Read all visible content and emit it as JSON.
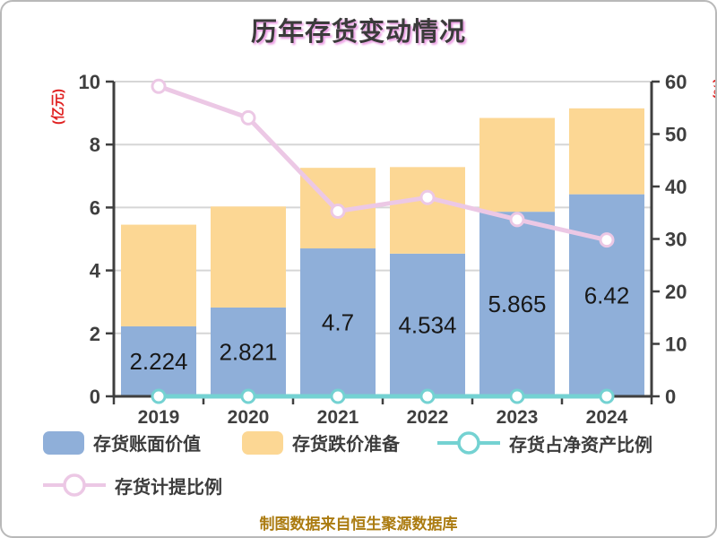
{
  "title": {
    "text": "历年存货变动情况"
  },
  "footer": {
    "text": "制图数据来自恒生聚源数据库"
  },
  "chart_data": {
    "type": "bar",
    "subtype": "stacked bars with two line overlays (dual axis)",
    "title": "历年存货变动情况",
    "categories": [
      "2019",
      "2020",
      "2021",
      "2022",
      "2023",
      "2024"
    ],
    "series": [
      {
        "name": "存货账面价值",
        "type": "bar",
        "stack": "inventory",
        "axis": "left",
        "color": "#8fafd9",
        "values": [
          2.224,
          2.821,
          4.7,
          4.534,
          5.865,
          6.42
        ],
        "data_labels": [
          "2.224",
          "2.821",
          "4.7",
          "4.534",
          "5.865",
          "6.42"
        ]
      },
      {
        "name": "存货跌价准备",
        "type": "bar",
        "stack": "inventory",
        "axis": "left",
        "color": "#fcd794",
        "values": [
          3.23,
          3.21,
          2.56,
          2.75,
          2.98,
          2.73
        ]
      },
      {
        "name": "存货占净资产比例",
        "type": "line",
        "axis": "right",
        "color": "#74d2d2",
        "marker": "white-filled-circle",
        "values": [
          0,
          0,
          0,
          0,
          0,
          0
        ]
      },
      {
        "name": "存货计提比例",
        "type": "line",
        "axis": "right",
        "color": "#ecc8e5",
        "marker": "white-filled-circle",
        "values": [
          59.1,
          53.1,
          35.3,
          37.9,
          33.7,
          29.8
        ]
      }
    ],
    "left_axis": {
      "label": "(亿元)",
      "min": 0,
      "max": 10,
      "tick_step": 2,
      "ticks": [
        0,
        2,
        4,
        6,
        8,
        10
      ],
      "label_color": "#e02222",
      "tick_color": "#3f3f3f"
    },
    "right_axis": {
      "label": "(%)",
      "min": 0,
      "max": 60,
      "tick_step": 10,
      "ticks": [
        0,
        10,
        20,
        30,
        40,
        50,
        60
      ],
      "label_color": "#e02222",
      "tick_color": "#3f3f3f"
    },
    "grid": {
      "show": true,
      "color": "#d6d6d6"
    },
    "legend_position": "bottom-left"
  }
}
